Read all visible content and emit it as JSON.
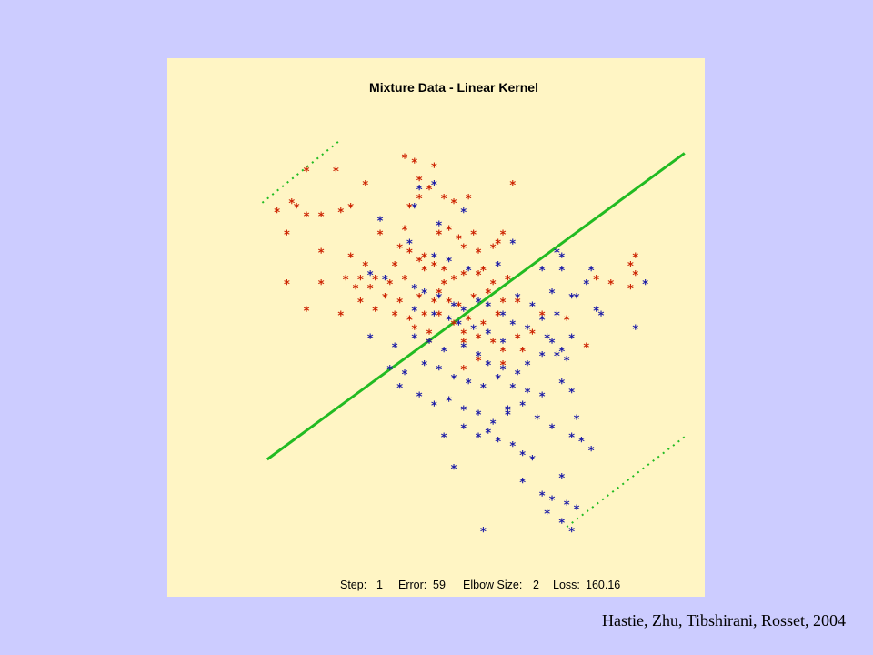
{
  "citation": "Hastie, Zhu, Tibshirani, Rosset, 2004",
  "colors": {
    "slide_background": "#ccccff",
    "plot_background": "#fff5c4",
    "class_red": "#cc2200",
    "class_blue": "#1a1aa6",
    "boundary": "#22bb22"
  },
  "status": {
    "step_label": "Step:",
    "step_value": "1",
    "error_label": "Error:",
    "error_value": "59",
    "elbow_label": "Elbow Size:",
    "elbow_value": "2",
    "loss_label": "Loss:",
    "loss_value": "160.16"
  },
  "chart_data": {
    "type": "scatter",
    "title": "Mixture Data - Linear Kernel",
    "xlim": [
      0,
      100
    ],
    "ylim": [
      0,
      100
    ],
    "marker": "*",
    "grid": false,
    "legend": "none",
    "series": [
      {
        "class": "red",
        "points": [
          [
            40,
            87
          ],
          [
            42,
            86
          ],
          [
            46,
            85
          ],
          [
            20,
            84
          ],
          [
            26,
            84
          ],
          [
            32,
            81
          ],
          [
            62,
            81
          ],
          [
            43,
            82
          ],
          [
            45,
            80
          ],
          [
            43,
            78
          ],
          [
            48,
            78
          ],
          [
            53,
            78
          ],
          [
            17,
            77
          ],
          [
            29,
            76
          ],
          [
            14,
            75
          ],
          [
            18,
            76
          ],
          [
            41,
            76
          ],
          [
            50,
            77
          ],
          [
            20,
            74
          ],
          [
            23,
            74
          ],
          [
            27,
            75
          ],
          [
            16,
            70
          ],
          [
            40,
            71
          ],
          [
            35,
            70
          ],
          [
            47,
            70
          ],
          [
            59,
            68
          ],
          [
            49,
            71
          ],
          [
            60,
            70
          ],
          [
            54,
            70
          ],
          [
            51,
            69
          ],
          [
            52,
            67
          ],
          [
            55,
            66
          ],
          [
            58,
            67
          ],
          [
            23,
            66
          ],
          [
            39,
            67
          ],
          [
            41,
            66
          ],
          [
            44,
            65
          ],
          [
            29,
            65
          ],
          [
            32,
            63
          ],
          [
            38,
            63
          ],
          [
            43,
            64
          ],
          [
            46,
            63
          ],
          [
            48,
            62
          ],
          [
            50,
            60
          ],
          [
            52,
            61
          ],
          [
            56,
            62
          ],
          [
            58,
            59
          ],
          [
            28,
            60
          ],
          [
            31,
            60
          ],
          [
            34,
            60
          ],
          [
            37,
            59
          ],
          [
            40,
            60
          ],
          [
            44,
            62
          ],
          [
            48,
            59
          ],
          [
            55,
            61
          ],
          [
            61,
            60
          ],
          [
            16,
            59
          ],
          [
            23,
            59
          ],
          [
            30,
            58
          ],
          [
            33,
            58
          ],
          [
            36,
            56
          ],
          [
            39,
            55
          ],
          [
            43,
            56
          ],
          [
            46,
            55
          ],
          [
            47,
            57
          ],
          [
            51,
            54
          ],
          [
            54,
            56
          ],
          [
            57,
            57
          ],
          [
            60,
            55
          ],
          [
            34,
            53
          ],
          [
            38,
            52
          ],
          [
            41,
            51
          ],
          [
            44,
            52
          ],
          [
            47,
            52
          ],
          [
            50,
            50
          ],
          [
            53,
            51
          ],
          [
            56,
            50
          ],
          [
            59,
            52
          ],
          [
            63,
            55
          ],
          [
            68,
            52
          ],
          [
            79,
            60
          ],
          [
            82,
            59
          ],
          [
            86,
            58
          ],
          [
            87,
            61
          ],
          [
            86,
            63
          ],
          [
            87,
            65
          ],
          [
            20,
            53
          ],
          [
            31,
            55
          ],
          [
            49,
            55
          ],
          [
            27,
            52
          ],
          [
            42,
            49
          ],
          [
            45,
            48
          ],
          [
            52,
            48
          ],
          [
            55,
            47
          ],
          [
            58,
            46
          ],
          [
            60,
            44
          ],
          [
            63,
            47
          ],
          [
            66,
            48
          ],
          [
            73,
            51
          ],
          [
            77,
            45
          ],
          [
            64,
            44
          ],
          [
            52,
            40
          ],
          [
            60,
            41
          ],
          [
            55,
            42
          ],
          [
            52,
            46
          ],
          [
            45,
            46
          ]
        ]
      },
      {
        "class": "blue",
        "points": [
          [
            43,
            80
          ],
          [
            46,
            81
          ],
          [
            42,
            76
          ],
          [
            52,
            75
          ],
          [
            35,
            73
          ],
          [
            47,
            72
          ],
          [
            41,
            68
          ],
          [
            62,
            68
          ],
          [
            46,
            65
          ],
          [
            49,
            64
          ],
          [
            71,
            66
          ],
          [
            72,
            65
          ],
          [
            53,
            62
          ],
          [
            59,
            63
          ],
          [
            68,
            62
          ],
          [
            33,
            61
          ],
          [
            36,
            60
          ],
          [
            42,
            58
          ],
          [
            44,
            57
          ],
          [
            47,
            56
          ],
          [
            50,
            54
          ],
          [
            52,
            53
          ],
          [
            55,
            55
          ],
          [
            57,
            54
          ],
          [
            60,
            52
          ],
          [
            63,
            56
          ],
          [
            66,
            54
          ],
          [
            70,
            57
          ],
          [
            74,
            56
          ],
          [
            77,
            59
          ],
          [
            72,
            62
          ],
          [
            78,
            62
          ],
          [
            75,
            56
          ],
          [
            89,
            59
          ],
          [
            42,
            53
          ],
          [
            46,
            52
          ],
          [
            49,
            51
          ],
          [
            51,
            50
          ],
          [
            54,
            49
          ],
          [
            57,
            48
          ],
          [
            60,
            46
          ],
          [
            62,
            50
          ],
          [
            65,
            49
          ],
          [
            68,
            51
          ],
          [
            69,
            47
          ],
          [
            71,
            52
          ],
          [
            79,
            53
          ],
          [
            80,
            52
          ],
          [
            74,
            47
          ],
          [
            87,
            49
          ],
          [
            72,
            44
          ],
          [
            73,
            42
          ],
          [
            33,
            47
          ],
          [
            38,
            45
          ],
          [
            42,
            47
          ],
          [
            45,
            46
          ],
          [
            48,
            44
          ],
          [
            52,
            45
          ],
          [
            55,
            43
          ],
          [
            57,
            41
          ],
          [
            60,
            40
          ],
          [
            63,
            39
          ],
          [
            65,
            41
          ],
          [
            68,
            43
          ],
          [
            70,
            46
          ],
          [
            71,
            43
          ],
          [
            37,
            40
          ],
          [
            40,
            39
          ],
          [
            44,
            41
          ],
          [
            47,
            40
          ],
          [
            50,
            38
          ],
          [
            53,
            37
          ],
          [
            56,
            36
          ],
          [
            59,
            38
          ],
          [
            62,
            36
          ],
          [
            65,
            35
          ],
          [
            68,
            34
          ],
          [
            72,
            37
          ],
          [
            74,
            35
          ],
          [
            75,
            29
          ],
          [
            39,
            36
          ],
          [
            43,
            34
          ],
          [
            46,
            32
          ],
          [
            49,
            33
          ],
          [
            52,
            31
          ],
          [
            55,
            30
          ],
          [
            58,
            28
          ],
          [
            61,
            30
          ],
          [
            64,
            32
          ],
          [
            67,
            29
          ],
          [
            70,
            27
          ],
          [
            74,
            25
          ],
          [
            76,
            24
          ],
          [
            78,
            22
          ],
          [
            48,
            25
          ],
          [
            52,
            27
          ],
          [
            55,
            25
          ],
          [
            57,
            26
          ],
          [
            59,
            24
          ],
          [
            62,
            23
          ],
          [
            64,
            21
          ],
          [
            66,
            20
          ],
          [
            50,
            18
          ],
          [
            72,
            16
          ],
          [
            64,
            15
          ],
          [
            68,
            12
          ],
          [
            70,
            11
          ],
          [
            73,
            10
          ],
          [
            75,
            9
          ],
          [
            69,
            8
          ],
          [
            72,
            6
          ],
          [
            74,
            4
          ],
          [
            56,
            4
          ],
          [
            61,
            31
          ]
        ]
      }
    ],
    "lines": [
      {
        "name": "",
        "style": "solid",
        "x": [
          12,
          97
        ],
        "y": [
          20,
          88
        ]
      },
      {
        "name": "",
        "style": "dotted",
        "x": [
          11,
          27
        ],
        "y": [
          77,
          91
        ]
      },
      {
        "name": "",
        "style": "dotted",
        "x": [
          73,
          97
        ],
        "y": [
          5,
          25
        ]
      }
    ]
  }
}
